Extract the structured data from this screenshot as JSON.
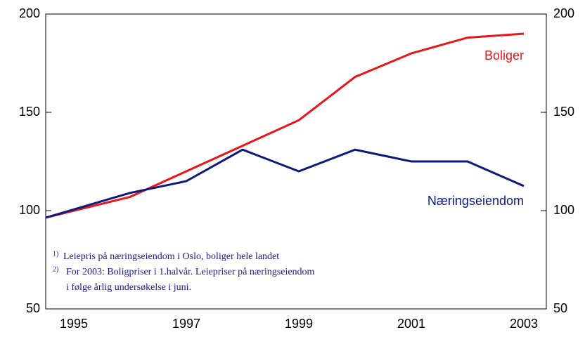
{
  "chart_data": {
    "type": "line",
    "x": [
      1994.5,
      1996,
      1997,
      1998,
      1999,
      2000,
      2001,
      2002,
      2003
    ],
    "series": [
      {
        "name": "Boliger",
        "color": "#e8161b",
        "values": [
          96.4,
          107,
          120,
          133,
          146,
          168,
          180,
          188,
          190
        ]
      },
      {
        "name": "Næringseiendom",
        "color": "#0d1a7a",
        "values": [
          96.4,
          109,
          115,
          131,
          120,
          131,
          125,
          125,
          112.5
        ]
      }
    ],
    "xlim": [
      1994.5,
      2003.4
    ],
    "xticks": [
      1995,
      1997,
      1999,
      2001,
      2003
    ],
    "ylim": [
      50,
      200
    ],
    "yticks": [
      50,
      100,
      150,
      200
    ],
    "y2lim": [
      50,
      200
    ],
    "y2ticks": [
      50,
      100,
      150,
      200
    ],
    "notes": [
      {
        "marker": "1)",
        "text": "Leiepris på næringseiendom i Oslo, boliger hele landet"
      },
      {
        "marker": "2)",
        "text": "For 2003: Boligpriser i 1.halvår. Leiepriser på næringseiendom"
      },
      {
        "marker": "",
        "text": "i følge årlig undersøkelse i juni."
      }
    ]
  }
}
